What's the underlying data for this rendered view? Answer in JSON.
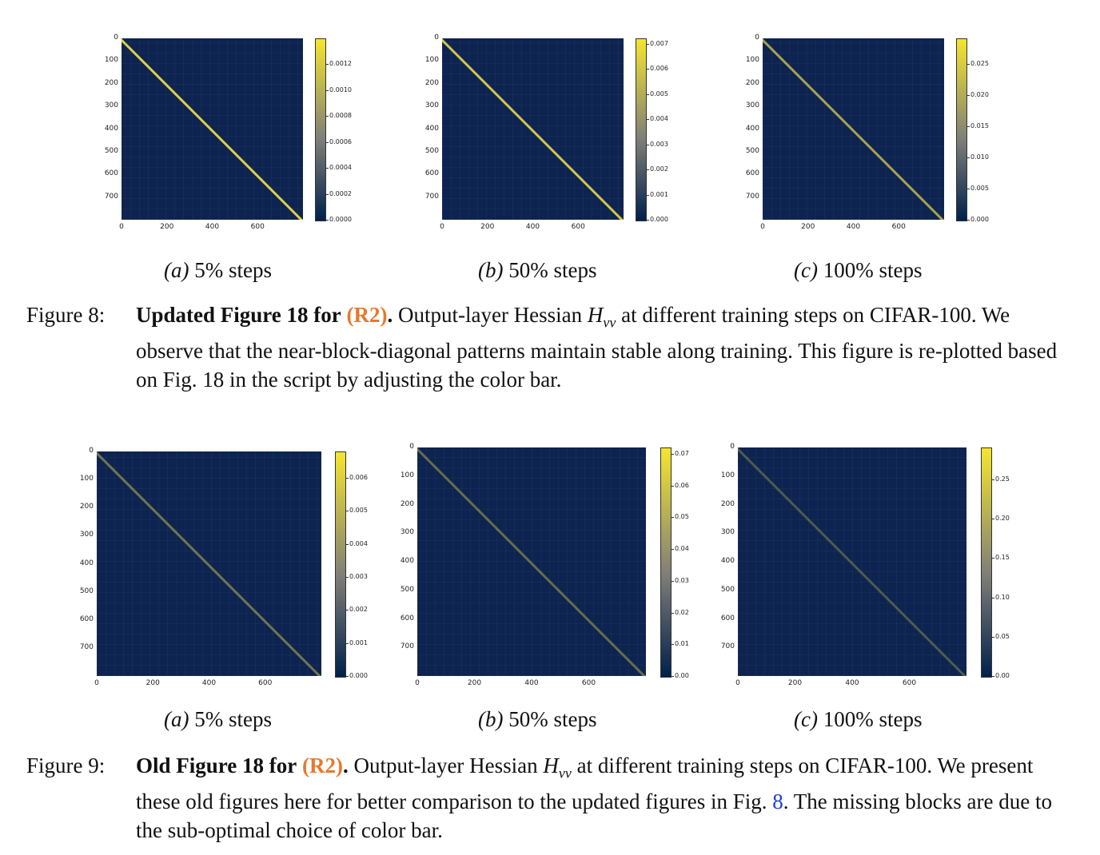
{
  "figure8": {
    "number": "Figure 8:",
    "title_bold": "Updated Figure 18 for",
    "ref": "(R2)",
    "period": ".",
    "text_1": "Output-layer Hessian",
    "math_symbol": "H",
    "math_sub": "vv",
    "text_2": "at different training steps on CIFAR-100. We observe that the near-block-diagonal patterns maintain stable along training. This figure is re-plotted based on Fig. 18 in the script by adjusting the color bar.",
    "panels": [
      {
        "label": "(a)",
        "caption": "5% steps",
        "cbar_ticks": [
          "0.0012",
          "0.0010",
          "0.0008",
          "0.0006",
          "0.0004",
          "0.0002",
          "0.0000"
        ]
      },
      {
        "label": "(b)",
        "caption": "50% steps",
        "cbar_ticks": [
          "0.007",
          "0.006",
          "0.005",
          "0.004",
          "0.003",
          "0.002",
          "0.001",
          "0.000"
        ]
      },
      {
        "label": "(c)",
        "caption": "100% steps",
        "cbar_ticks": [
          "0.025",
          "0.020",
          "0.015",
          "0.010",
          "0.005",
          "0.000"
        ]
      }
    ]
  },
  "figure9": {
    "number": "Figure 9:",
    "title_bold": "Old Figure 18 for",
    "ref": "(R2)",
    "period": ".",
    "text_1": "Output-layer Hessian",
    "math_symbol": "H",
    "math_sub": "vv",
    "text_2": "at different training steps on CIFAR-100. We present these old figures here for better comparison to the updated figures in Fig.",
    "fig_link": "8",
    "text_3": ". The missing blocks are due to the sub-optimal choice of color bar.",
    "panels": [
      {
        "label": "(a)",
        "caption": "5% steps",
        "cbar_ticks": [
          "0.006",
          "0.005",
          "0.004",
          "0.003",
          "0.002",
          "0.001",
          "0.000"
        ]
      },
      {
        "label": "(b)",
        "caption": "50% steps",
        "cbar_ticks": [
          "0.07",
          "0.06",
          "0.05",
          "0.04",
          "0.03",
          "0.02",
          "0.01",
          "0.00"
        ]
      },
      {
        "label": "(c)",
        "caption": "100% steps",
        "cbar_ticks": [
          "0.25",
          "0.20",
          "0.15",
          "0.10",
          "0.05",
          "0.00"
        ]
      }
    ]
  },
  "axes": {
    "y_ticks": [
      "0",
      "100",
      "200",
      "300",
      "400",
      "500",
      "600",
      "700"
    ],
    "x_ticks": [
      "0",
      "200",
      "400",
      "600"
    ]
  },
  "colors": {
    "heat_background": "#0d2350",
    "diagonal": "#e8d84a",
    "cbar_top": "#f5e52e",
    "cbar_mid": "#7f7f78",
    "cbar_bottom": "#00204c",
    "ref_orange": "#e8782b",
    "link_blue": "#1a3fd6"
  },
  "chart_data": [
    {
      "type": "heatmap",
      "title": "",
      "subplot": "(a) 5% steps",
      "xlim": [
        0,
        800
      ],
      "ylim": [
        800,
        0
      ],
      "colorbar_range": [
        0,
        0.0013
      ],
      "pattern": "near-block-diagonal"
    },
    {
      "type": "heatmap",
      "title": "",
      "subplot": "(b) 50% steps",
      "xlim": [
        0,
        800
      ],
      "ylim": [
        800,
        0
      ],
      "colorbar_range": [
        0,
        0.0072
      ],
      "pattern": "near-block-diagonal"
    },
    {
      "type": "heatmap",
      "title": "",
      "subplot": "(c) 100% steps",
      "xlim": [
        0,
        800
      ],
      "ylim": [
        800,
        0
      ],
      "colorbar_range": [
        0,
        0.029
      ],
      "pattern": "near-block-diagonal"
    },
    {
      "type": "heatmap",
      "title": "",
      "subplot": "(a) 5% steps (old)",
      "xlim": [
        0,
        800
      ],
      "ylim": [
        800,
        0
      ],
      "colorbar_range": [
        0,
        0.0066
      ],
      "pattern": "diagonal"
    },
    {
      "type": "heatmap",
      "title": "",
      "subplot": "(b) 50% steps (old)",
      "xlim": [
        0,
        800
      ],
      "ylim": [
        800,
        0
      ],
      "colorbar_range": [
        0,
        0.072
      ],
      "pattern": "diagonal"
    },
    {
      "type": "heatmap",
      "title": "",
      "subplot": "(c) 100% steps (old)",
      "xlim": [
        0,
        800
      ],
      "ylim": [
        800,
        0
      ],
      "colorbar_range": [
        0,
        0.29
      ],
      "pattern": "diagonal"
    }
  ]
}
